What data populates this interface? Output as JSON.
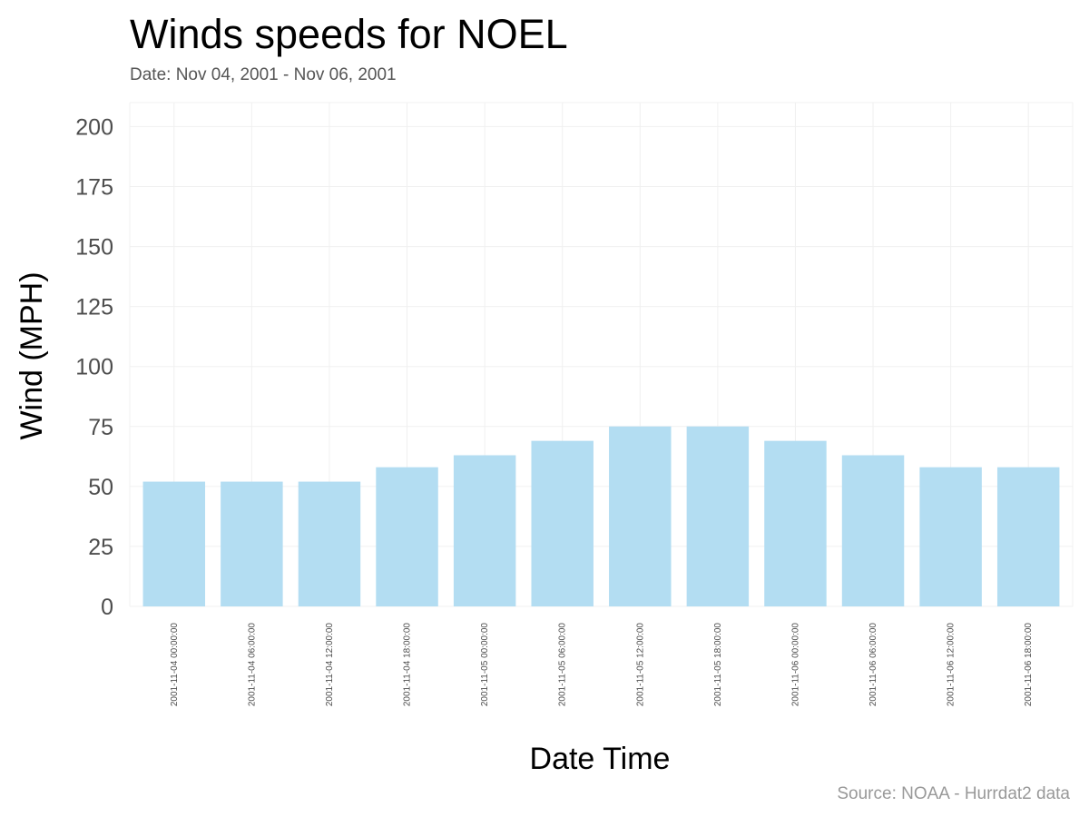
{
  "chart_data": {
    "type": "bar",
    "title": "Winds speeds for NOEL",
    "subtitle": "Date:  Nov 04, 2001 - Nov 06, 2001",
    "xlabel": "Date Time",
    "ylabel": "Wind (MPH)",
    "caption": "Source: NOAA - Hurrdat2 data",
    "ylim": [
      0,
      210
    ],
    "yticks": [
      0,
      25,
      50,
      75,
      100,
      125,
      150,
      175,
      200
    ],
    "categories": [
      "2001-11-04 00:00:00",
      "2001-11-04 06:00:00",
      "2001-11-04 12:00:00",
      "2001-11-04 18:00:00",
      "2001-11-05 00:00:00",
      "2001-11-05 06:00:00",
      "2001-11-05 12:00:00",
      "2001-11-05 18:00:00",
      "2001-11-06 00:00:00",
      "2001-11-06 06:00:00",
      "2001-11-06 12:00:00",
      "2001-11-06 18:00:00"
    ],
    "values": [
      52,
      52,
      52,
      58,
      63,
      69,
      75,
      75,
      69,
      63,
      58,
      58
    ],
    "grid": true,
    "legend": "none",
    "bar_color": "#b3ddf2"
  }
}
